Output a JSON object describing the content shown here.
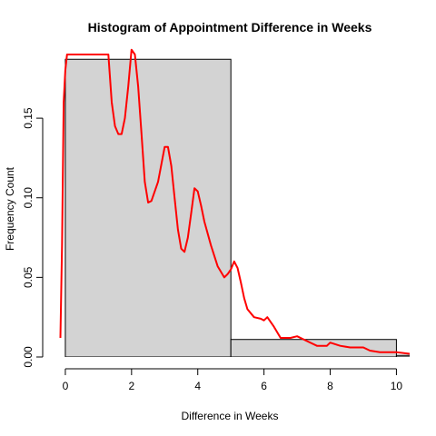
{
  "chart_data": {
    "type": "bar",
    "title": "Histogram of Appointment Difference in Weeks",
    "xlabel": "Difference in Weeks",
    "ylabel": "Frequency Count",
    "xlim": [
      -0.3,
      10.4
    ],
    "ylim": [
      0,
      0.19
    ],
    "x_ticks": [
      0,
      2,
      4,
      6,
      8,
      10
    ],
    "x_tick_labels": [
      "0",
      "2",
      "4",
      "6",
      "8",
      "10"
    ],
    "y_ticks": [
      0.0,
      0.05,
      0.1,
      0.15
    ],
    "y_tick_labels": [
      "0.00",
      "0.05",
      "0.10",
      "0.15"
    ],
    "grid": false,
    "bar_color": "#d3d3d3",
    "bar_edge_color": "#000000",
    "bins": [
      {
        "x0": 0,
        "x1": 5,
        "value": 0.187
      },
      {
        "x0": 5,
        "x1": 10,
        "value": 0.011
      },
      {
        "x0": 10,
        "x1": 15,
        "value": 0.001
      }
    ],
    "density": {
      "name": "",
      "color": "#ff0000",
      "x": [
        -0.15,
        -0.1,
        -0.05,
        0.0,
        0.05,
        0.1,
        1.3,
        1.4,
        1.5,
        1.6,
        1.7,
        1.8,
        1.9,
        2.0,
        2.1,
        2.2,
        2.3,
        2.4,
        2.5,
        2.6,
        2.8,
        3.0,
        3.1,
        3.2,
        3.3,
        3.4,
        3.5,
        3.6,
        3.7,
        3.8,
        3.9,
        4.0,
        4.1,
        4.2,
        4.4,
        4.6,
        4.8,
        4.9,
        5.0,
        5.1,
        5.2,
        5.3,
        5.4,
        5.5,
        5.7,
        5.9,
        6.0,
        6.1,
        6.3,
        6.5,
        6.8,
        7.0,
        7.3,
        7.6,
        7.9,
        8.0,
        8.3,
        8.6,
        9.0,
        9.2,
        9.5,
        10.0,
        10.4
      ],
      "values": [
        0.012,
        0.07,
        0.16,
        0.18,
        0.19,
        0.19,
        0.19,
        0.16,
        0.145,
        0.14,
        0.14,
        0.15,
        0.17,
        0.193,
        0.19,
        0.17,
        0.14,
        0.11,
        0.097,
        0.098,
        0.11,
        0.132,
        0.132,
        0.12,
        0.1,
        0.08,
        0.068,
        0.066,
        0.075,
        0.09,
        0.106,
        0.104,
        0.095,
        0.085,
        0.07,
        0.057,
        0.05,
        0.052,
        0.055,
        0.06,
        0.056,
        0.047,
        0.037,
        0.03,
        0.025,
        0.024,
        0.023,
        0.025,
        0.019,
        0.012,
        0.012,
        0.013,
        0.01,
        0.007,
        0.007,
        0.009,
        0.007,
        0.006,
        0.006,
        0.004,
        0.003,
        0.003,
        0.002
      ]
    }
  }
}
